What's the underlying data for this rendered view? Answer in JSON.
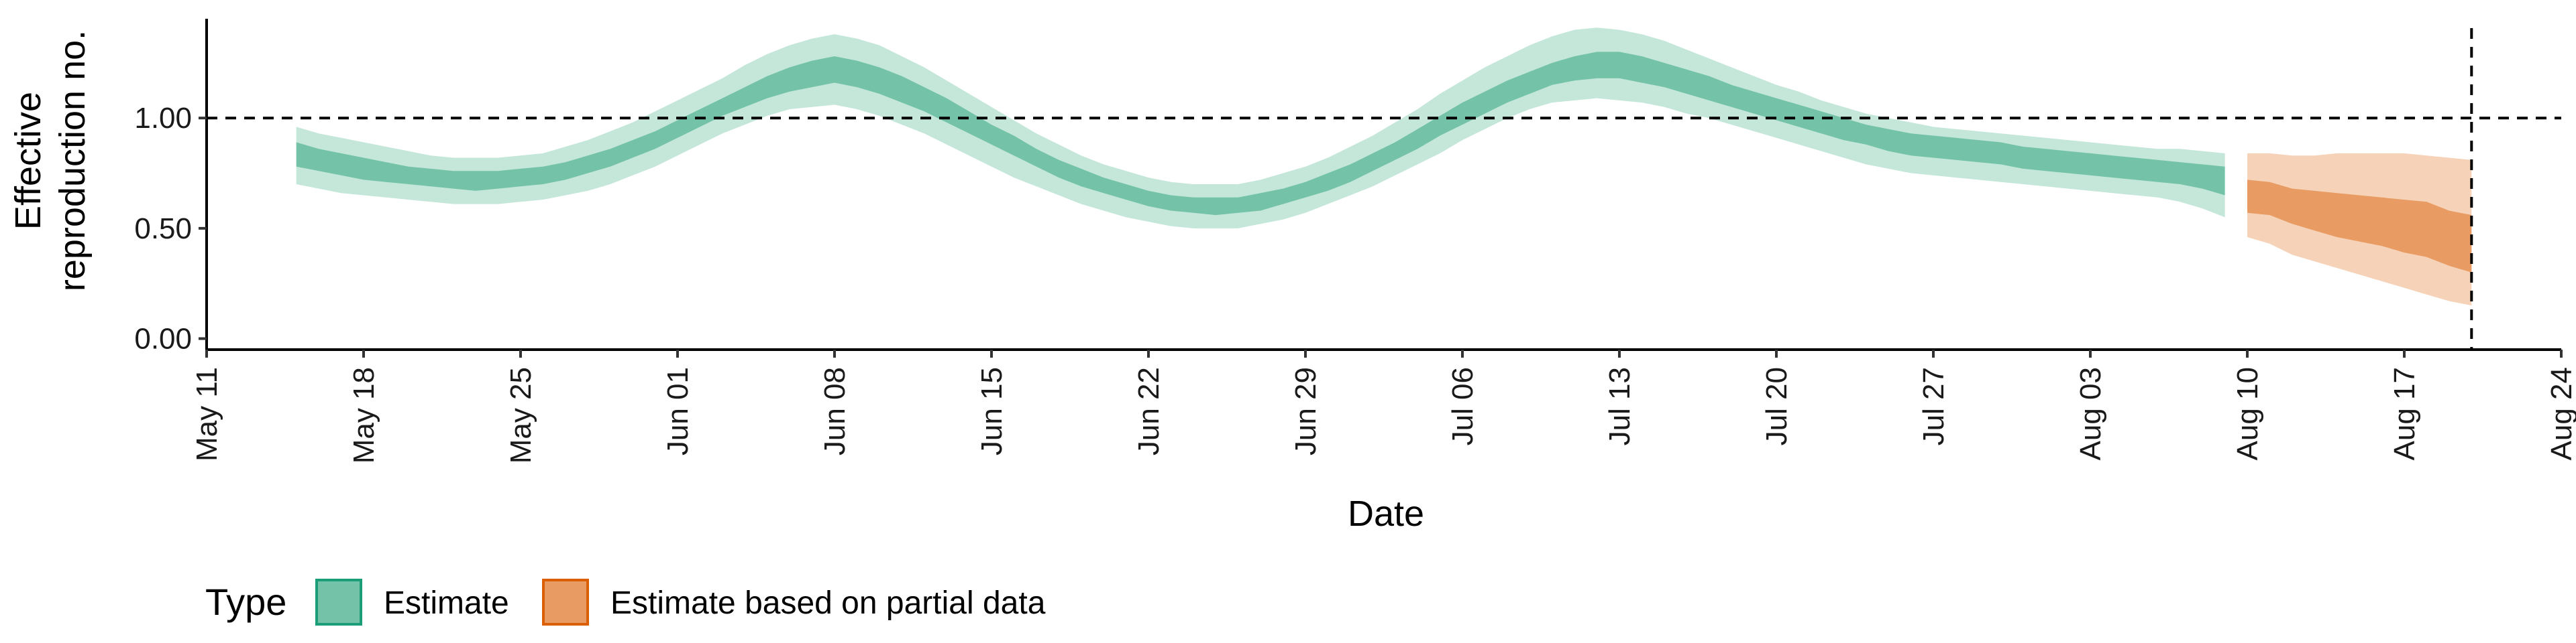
{
  "chart_data": {
    "type": "area",
    "xlabel": "Date",
    "ylabel_lines": [
      "Effective",
      "reproduction no."
    ],
    "x_ticks": [
      "May 11",
      "May 18",
      "May 25",
      "Jun 01",
      "Jun 08",
      "Jun 15",
      "Jun 22",
      "Jun 29",
      "Jul 06",
      "Jul 13",
      "Jul 20",
      "Jul 27",
      "Aug 03",
      "Aug 10",
      "Aug 17",
      "Aug 24"
    ],
    "y_ticks": [
      "0.00",
      "0.50",
      "1.00"
    ],
    "ylim": [
      -0.05,
      1.45
    ],
    "xlim": [
      "2021-05-11",
      "2021-08-24"
    ],
    "reference_line_y": 1.0,
    "reference_line_x": "2021-08-20",
    "legend": {
      "title": "Type",
      "position": "bottom-left",
      "items": [
        {
          "label": "Estimate",
          "color": "#1b9e77"
        },
        {
          "label": "Estimate based on partial data",
          "color": "#d95f02"
        }
      ]
    },
    "colors": {
      "estimate_inner": "#74c3a8",
      "estimate_outer": "#c4e7da",
      "partial_inner": "#e89c63",
      "partial_outer": "#f6d3b8"
    },
    "series": [
      {
        "name": "Estimate",
        "dates": [
          "2021-05-15",
          "2021-05-16",
          "2021-05-17",
          "2021-05-18",
          "2021-05-19",
          "2021-05-20",
          "2021-05-21",
          "2021-05-22",
          "2021-05-23",
          "2021-05-24",
          "2021-05-25",
          "2021-05-26",
          "2021-05-27",
          "2021-05-28",
          "2021-05-29",
          "2021-05-30",
          "2021-05-31",
          "2021-06-01",
          "2021-06-02",
          "2021-06-03",
          "2021-06-04",
          "2021-06-05",
          "2021-06-06",
          "2021-06-07",
          "2021-06-08",
          "2021-06-09",
          "2021-06-10",
          "2021-06-11",
          "2021-06-12",
          "2021-06-13",
          "2021-06-14",
          "2021-06-15",
          "2021-06-16",
          "2021-06-17",
          "2021-06-18",
          "2021-06-19",
          "2021-06-20",
          "2021-06-21",
          "2021-06-22",
          "2021-06-23",
          "2021-06-24",
          "2021-06-25",
          "2021-06-26",
          "2021-06-27",
          "2021-06-28",
          "2021-06-29",
          "2021-06-30",
          "2021-07-01",
          "2021-07-02",
          "2021-07-03",
          "2021-07-04",
          "2021-07-05",
          "2021-07-06",
          "2021-07-07",
          "2021-07-08",
          "2021-07-09",
          "2021-07-10",
          "2021-07-11",
          "2021-07-12",
          "2021-07-13",
          "2021-07-14",
          "2021-07-15",
          "2021-07-16",
          "2021-07-17",
          "2021-07-18",
          "2021-07-19",
          "2021-07-20",
          "2021-07-21",
          "2021-07-22",
          "2021-07-23",
          "2021-07-24",
          "2021-07-25",
          "2021-07-26",
          "2021-07-27",
          "2021-07-28",
          "2021-07-29",
          "2021-07-30",
          "2021-07-31",
          "2021-08-01",
          "2021-08-02",
          "2021-08-03",
          "2021-08-04",
          "2021-08-05",
          "2021-08-06",
          "2021-08-07",
          "2021-08-08",
          "2021-08-09"
        ],
        "median": [
          0.84,
          0.81,
          0.79,
          0.77,
          0.75,
          0.74,
          0.73,
          0.72,
          0.72,
          0.72,
          0.73,
          0.74,
          0.76,
          0.79,
          0.82,
          0.86,
          0.9,
          0.95,
          1.0,
          1.05,
          1.1,
          1.14,
          1.18,
          1.2,
          1.22,
          1.2,
          1.17,
          1.13,
          1.08,
          1.03,
          0.98,
          0.93,
          0.87,
          0.82,
          0.77,
          0.73,
          0.69,
          0.66,
          0.64,
          0.62,
          0.6,
          0.6,
          0.61,
          0.62,
          0.64,
          0.67,
          0.71,
          0.75,
          0.8,
          0.85,
          0.9,
          0.96,
          1.02,
          1.07,
          1.12,
          1.16,
          1.2,
          1.23,
          1.24,
          1.24,
          1.22,
          1.19,
          1.16,
          1.13,
          1.1,
          1.07,
          1.04,
          1.01,
          0.98,
          0.95,
          0.92,
          0.9,
          0.88,
          0.87,
          0.86,
          0.85,
          0.84,
          0.82,
          0.81,
          0.8,
          0.79,
          0.78,
          0.77,
          0.76,
          0.75,
          0.74,
          0.72
        ],
        "inner_low": [
          0.78,
          0.76,
          0.74,
          0.72,
          0.71,
          0.7,
          0.69,
          0.68,
          0.67,
          0.68,
          0.69,
          0.7,
          0.72,
          0.75,
          0.78,
          0.82,
          0.86,
          0.91,
          0.96,
          1.01,
          1.05,
          1.09,
          1.12,
          1.14,
          1.16,
          1.14,
          1.11,
          1.07,
          1.03,
          0.98,
          0.93,
          0.88,
          0.83,
          0.78,
          0.73,
          0.69,
          0.66,
          0.63,
          0.6,
          0.58,
          0.57,
          0.56,
          0.57,
          0.58,
          0.61,
          0.64,
          0.67,
          0.71,
          0.76,
          0.81,
          0.86,
          0.92,
          0.97,
          1.02,
          1.07,
          1.11,
          1.15,
          1.17,
          1.18,
          1.18,
          1.16,
          1.14,
          1.11,
          1.08,
          1.05,
          1.02,
          0.99,
          0.96,
          0.93,
          0.9,
          0.88,
          0.85,
          0.83,
          0.82,
          0.81,
          0.8,
          0.79,
          0.77,
          0.76,
          0.75,
          0.74,
          0.73,
          0.72,
          0.71,
          0.7,
          0.68,
          0.65
        ],
        "inner_high": [
          0.89,
          0.86,
          0.84,
          0.82,
          0.8,
          0.78,
          0.77,
          0.76,
          0.76,
          0.76,
          0.77,
          0.78,
          0.8,
          0.83,
          0.86,
          0.9,
          0.94,
          0.99,
          1.04,
          1.09,
          1.14,
          1.19,
          1.23,
          1.26,
          1.28,
          1.26,
          1.23,
          1.19,
          1.14,
          1.09,
          1.03,
          0.97,
          0.92,
          0.86,
          0.81,
          0.77,
          0.73,
          0.7,
          0.67,
          0.65,
          0.64,
          0.64,
          0.64,
          0.66,
          0.68,
          0.71,
          0.75,
          0.79,
          0.84,
          0.89,
          0.95,
          1.01,
          1.07,
          1.12,
          1.17,
          1.21,
          1.25,
          1.28,
          1.3,
          1.3,
          1.28,
          1.25,
          1.22,
          1.19,
          1.15,
          1.12,
          1.09,
          1.06,
          1.03,
          1.0,
          0.97,
          0.95,
          0.93,
          0.92,
          0.91,
          0.9,
          0.89,
          0.87,
          0.86,
          0.85,
          0.84,
          0.83,
          0.82,
          0.81,
          0.8,
          0.79,
          0.78
        ],
        "outer_low": [
          0.7,
          0.68,
          0.66,
          0.65,
          0.64,
          0.63,
          0.62,
          0.61,
          0.61,
          0.61,
          0.62,
          0.63,
          0.65,
          0.67,
          0.7,
          0.74,
          0.78,
          0.83,
          0.88,
          0.93,
          0.97,
          1.01,
          1.04,
          1.05,
          1.06,
          1.04,
          1.01,
          0.97,
          0.93,
          0.88,
          0.83,
          0.78,
          0.73,
          0.69,
          0.65,
          0.61,
          0.58,
          0.55,
          0.53,
          0.51,
          0.5,
          0.5,
          0.5,
          0.52,
          0.54,
          0.57,
          0.61,
          0.65,
          0.69,
          0.74,
          0.79,
          0.84,
          0.9,
          0.95,
          1.0,
          1.04,
          1.07,
          1.08,
          1.09,
          1.08,
          1.07,
          1.05,
          1.02,
          1.0,
          0.97,
          0.94,
          0.91,
          0.88,
          0.85,
          0.82,
          0.79,
          0.77,
          0.75,
          0.74,
          0.73,
          0.72,
          0.71,
          0.7,
          0.69,
          0.68,
          0.67,
          0.66,
          0.65,
          0.64,
          0.62,
          0.59,
          0.55
        ],
        "outer_high": [
          0.96,
          0.93,
          0.91,
          0.89,
          0.87,
          0.85,
          0.83,
          0.82,
          0.82,
          0.82,
          0.83,
          0.84,
          0.87,
          0.9,
          0.94,
          0.98,
          1.03,
          1.08,
          1.13,
          1.18,
          1.24,
          1.29,
          1.33,
          1.36,
          1.38,
          1.36,
          1.33,
          1.28,
          1.23,
          1.17,
          1.11,
          1.05,
          0.99,
          0.93,
          0.88,
          0.83,
          0.79,
          0.76,
          0.73,
          0.71,
          0.7,
          0.7,
          0.7,
          0.72,
          0.75,
          0.78,
          0.82,
          0.87,
          0.92,
          0.98,
          1.04,
          1.11,
          1.17,
          1.23,
          1.28,
          1.33,
          1.37,
          1.4,
          1.41,
          1.4,
          1.38,
          1.35,
          1.31,
          1.27,
          1.23,
          1.19,
          1.15,
          1.12,
          1.08,
          1.05,
          1.02,
          1.0,
          0.98,
          0.96,
          0.95,
          0.94,
          0.93,
          0.92,
          0.91,
          0.9,
          0.89,
          0.88,
          0.87,
          0.86,
          0.86,
          0.85,
          0.84
        ]
      },
      {
        "name": "Estimate based on partial data",
        "dates": [
          "2021-08-10",
          "2021-08-11",
          "2021-08-12",
          "2021-08-13",
          "2021-08-14",
          "2021-08-15",
          "2021-08-16",
          "2021-08-17",
          "2021-08-18",
          "2021-08-19",
          "2021-08-20"
        ],
        "median": [
          0.64,
          0.63,
          0.6,
          0.58,
          0.56,
          0.54,
          0.52,
          0.5,
          0.48,
          0.46,
          0.43
        ],
        "inner_low": [
          0.57,
          0.56,
          0.52,
          0.49,
          0.46,
          0.44,
          0.42,
          0.39,
          0.37,
          0.33,
          0.3
        ],
        "inner_high": [
          0.72,
          0.71,
          0.68,
          0.67,
          0.66,
          0.65,
          0.64,
          0.63,
          0.62,
          0.58,
          0.56
        ],
        "outer_low": [
          0.46,
          0.43,
          0.38,
          0.35,
          0.32,
          0.29,
          0.26,
          0.23,
          0.2,
          0.17,
          0.15
        ],
        "outer_high": [
          0.84,
          0.84,
          0.83,
          0.83,
          0.84,
          0.84,
          0.84,
          0.84,
          0.83,
          0.82,
          0.81
        ]
      }
    ]
  }
}
